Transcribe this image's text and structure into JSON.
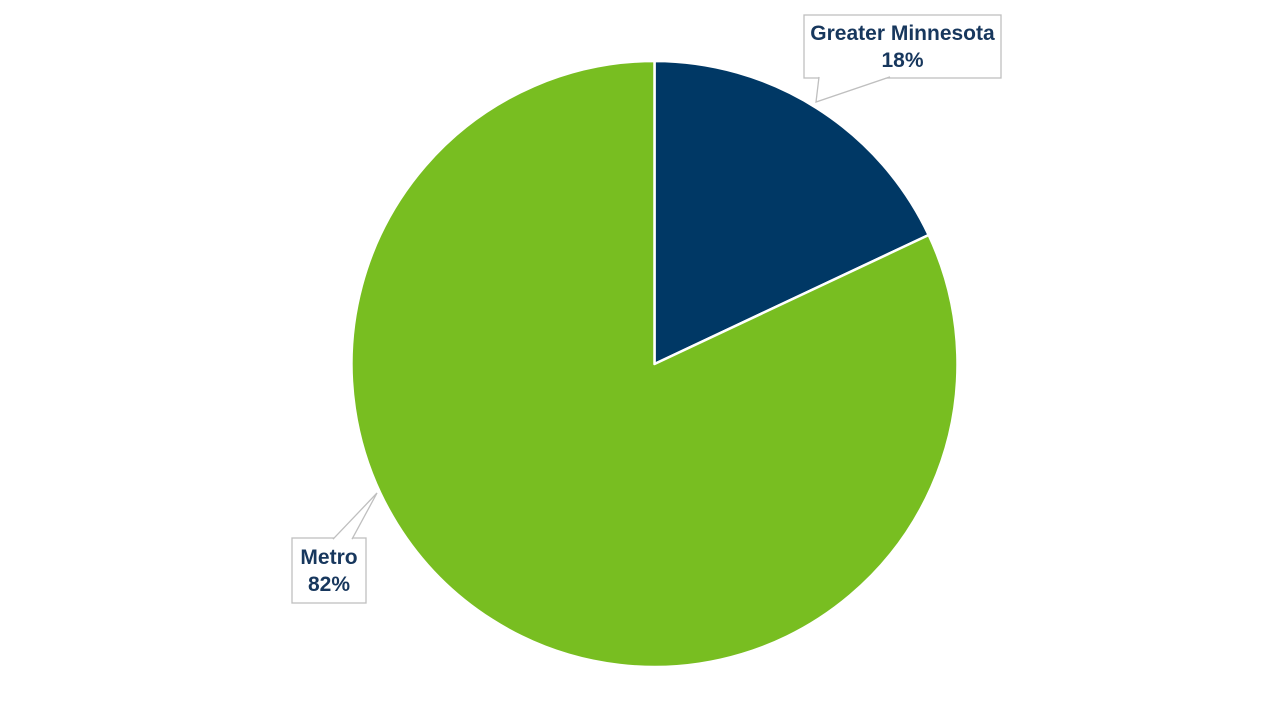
{
  "chart_data": {
    "type": "pie",
    "title": "",
    "slices": [
      {
        "label": "Greater Minnesota",
        "value": 18,
        "percent_label": "18%",
        "color": "#003865"
      },
      {
        "label": "Metro",
        "value": 82,
        "percent_label": "82%",
        "color": "#78BE21"
      }
    ],
    "start_angle_deg": 0,
    "direction": "clockwise",
    "legend": "none",
    "grid": "off",
    "data_labels": "category name and percentage shown in white callout boxes with leader pointers",
    "label_text_color": "#17375D",
    "callout_border_color": "#BFBFBF",
    "slice_border_color": "#FFFFFF",
    "background_color": "#FFFFFF"
  }
}
